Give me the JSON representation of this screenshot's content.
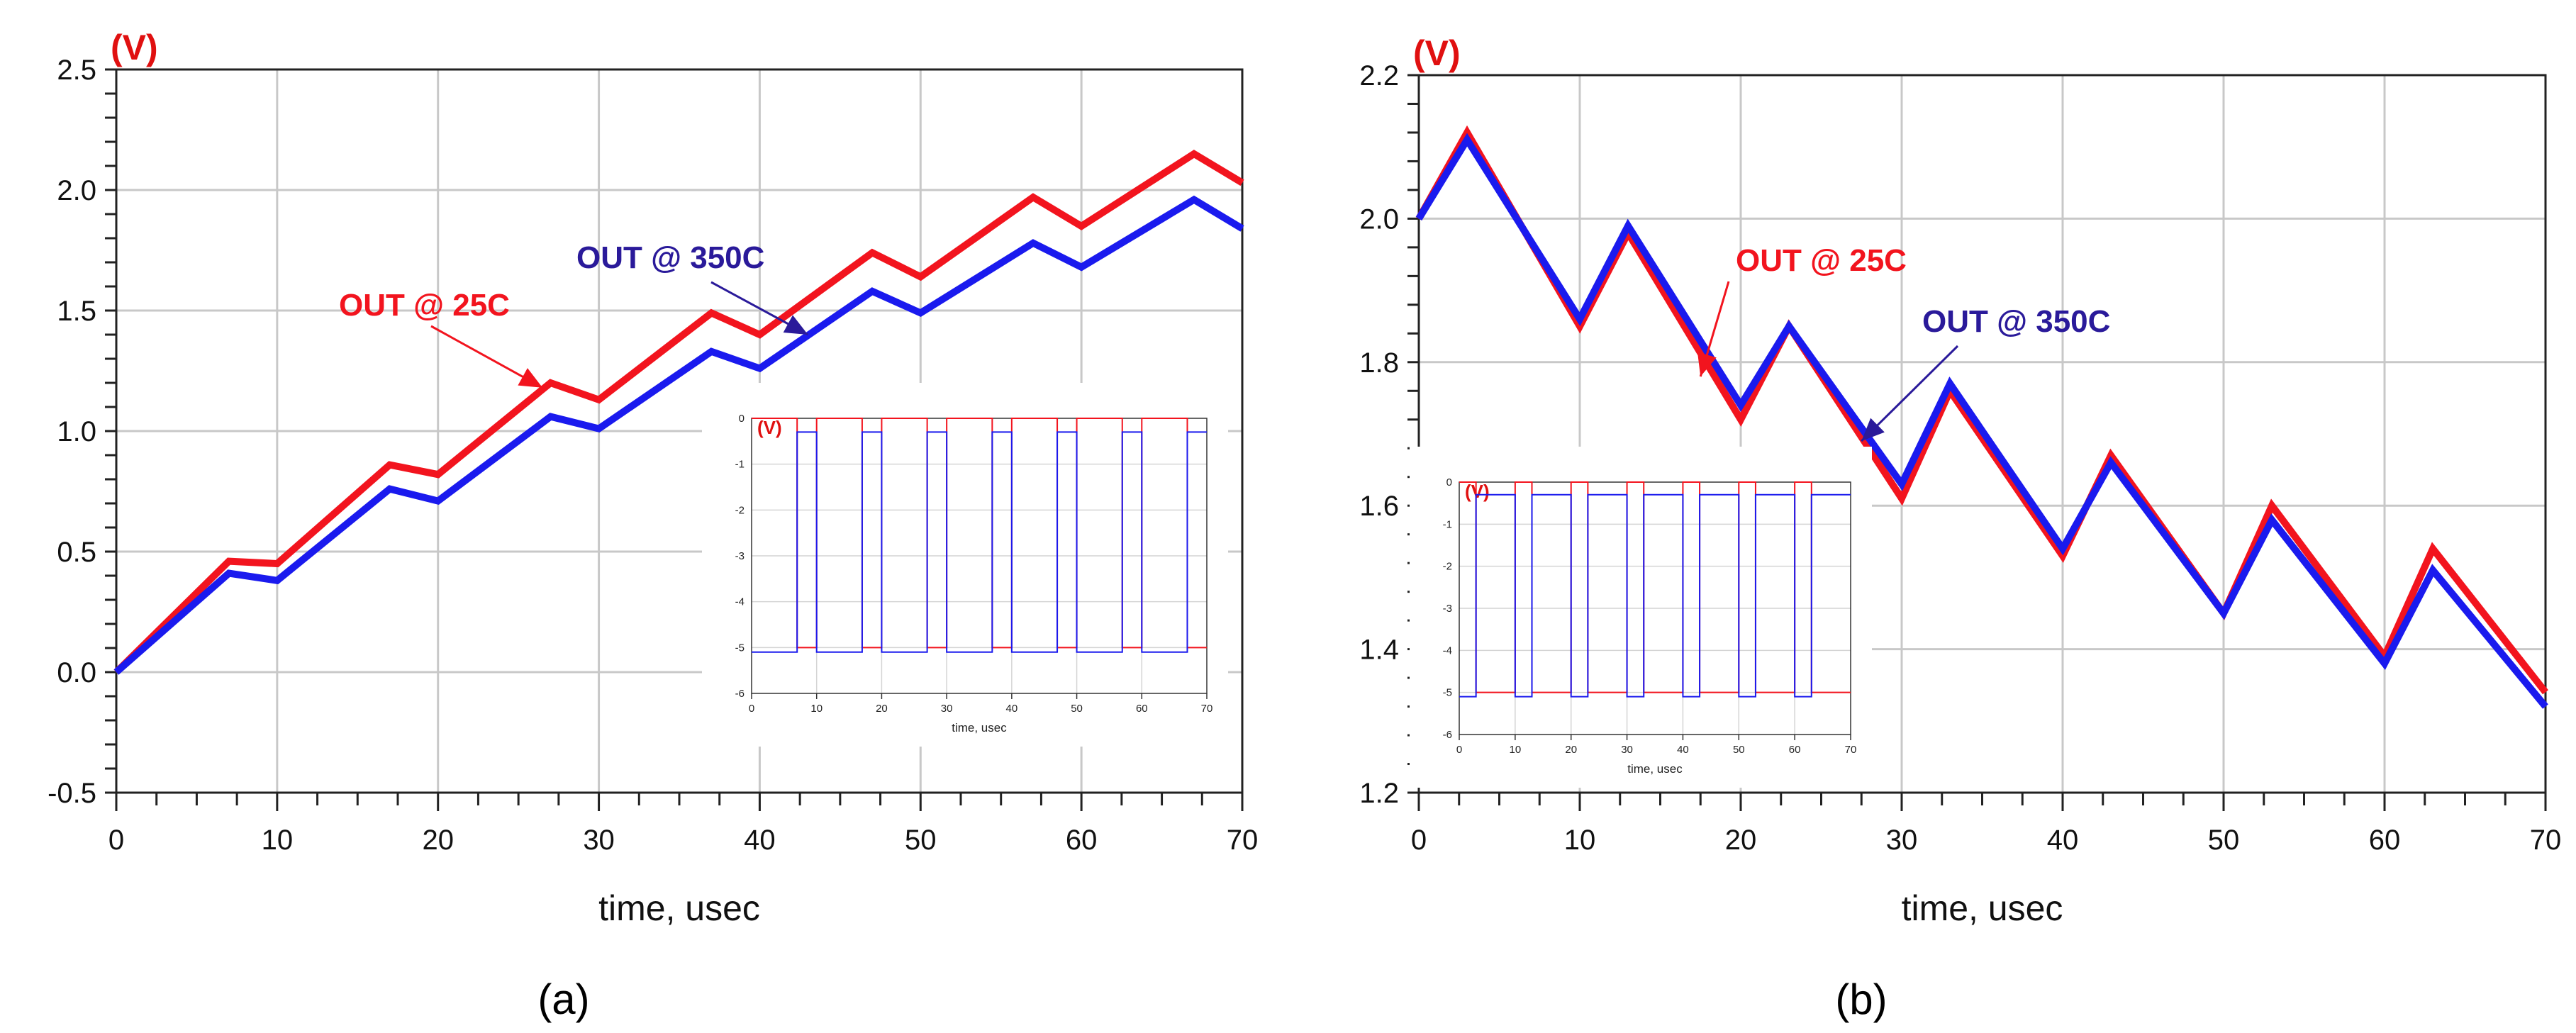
{
  "chart_data": [
    {
      "type": "line",
      "panel_label": "(a)",
      "unit_label": "(V)",
      "xlabel": "time, usec",
      "xlim": [
        0,
        70
      ],
      "ylim": [
        -0.5,
        2.5
      ],
      "xticks": [
        0,
        10,
        20,
        30,
        40,
        50,
        60,
        70
      ],
      "yticks": [
        -0.5,
        0.0,
        0.5,
        1.0,
        1.5,
        2.0,
        2.5
      ],
      "ytick_labels": [
        "-0.5",
        "0.0",
        "0.5",
        "1.0",
        "1.5",
        "2.0",
        "2.5"
      ],
      "grid": true,
      "series": [
        {
          "name": "OUT @ 25C",
          "color": "#f2141e",
          "x": [
            0,
            7,
            10,
            17,
            20,
            27,
            30,
            37,
            40,
            47,
            50,
            57,
            60,
            67,
            70
          ],
          "y": [
            0.0,
            0.46,
            0.45,
            0.86,
            0.82,
            1.2,
            1.13,
            1.49,
            1.4,
            1.74,
            1.64,
            1.97,
            1.85,
            2.15,
            2.03
          ]
        },
        {
          "name": "OUT @ 350C",
          "color": "#1a1aee",
          "x": [
            0,
            7,
            10,
            17,
            20,
            27,
            30,
            37,
            40,
            47,
            50,
            57,
            60,
            67,
            70
          ],
          "y": [
            0.0,
            0.41,
            0.38,
            0.76,
            0.71,
            1.06,
            1.01,
            1.33,
            1.26,
            1.58,
            1.49,
            1.78,
            1.68,
            1.96,
            1.84
          ]
        }
      ],
      "annotations": [
        {
          "text": "OUT @ 25C",
          "color": "#f2141e",
          "target": [
            26.5,
            1.18
          ]
        },
        {
          "text": "OUT @ 350C",
          "color": "#2a1a9a",
          "target": [
            43,
            1.4
          ]
        }
      ],
      "inset": {
        "unit_label": "(V)",
        "xlabel": "time, usec",
        "xlim": [
          0,
          70
        ],
        "ylim": [
          -6,
          0
        ],
        "xticks": [
          0,
          10,
          20,
          30,
          40,
          50,
          60,
          70
        ],
        "yticks": [
          -6,
          -5,
          -4,
          -3,
          -2,
          -1,
          0
        ],
        "ytick_labels": [
          "-6",
          "-5",
          "-4",
          "-3",
          "-2",
          "-1",
          "0"
        ],
        "series": [
          {
            "color": "#f2141e",
            "high": 0,
            "low": -5,
            "high_intervals": [
              [
                0,
                7
              ],
              [
                10,
                17
              ],
              [
                20,
                27
              ],
              [
                30,
                37
              ],
              [
                40,
                47
              ],
              [
                50,
                57
              ],
              [
                60,
                67
              ]
            ]
          },
          {
            "color": "#1a1aee",
            "high": -0.3,
            "low": -5.1,
            "high_intervals": [
              [
                7,
                10
              ],
              [
                17,
                20
              ],
              [
                27,
                30
              ],
              [
                37,
                40
              ],
              [
                47,
                50
              ],
              [
                57,
                60
              ],
              [
                67,
                70
              ]
            ]
          }
        ]
      }
    },
    {
      "type": "line",
      "panel_label": "(b)",
      "unit_label": "(V)",
      "xlabel": "time, usec",
      "xlim": [
        0,
        70
      ],
      "ylim": [
        1.2,
        2.2
      ],
      "xticks": [
        0,
        10,
        20,
        30,
        40,
        50,
        60,
        70
      ],
      "yticks": [
        1.2,
        1.4,
        1.6,
        1.8,
        2.0,
        2.2
      ],
      "ytick_labels": [
        "1.2",
        "1.4",
        "1.6",
        "1.8",
        "2.0",
        "2.2"
      ],
      "grid": true,
      "series": [
        {
          "name": "OUT @ 25C",
          "color": "#f2141e",
          "x": [
            0,
            3,
            10,
            13,
            20,
            23,
            30,
            33,
            40,
            43,
            50,
            53,
            60,
            63,
            70
          ],
          "y": [
            2.0,
            2.12,
            1.85,
            1.98,
            1.72,
            1.85,
            1.61,
            1.76,
            1.53,
            1.67,
            1.45,
            1.6,
            1.39,
            1.54,
            1.34
          ]
        },
        {
          "name": "OUT @ 350C",
          "color": "#1a1aee",
          "x": [
            0,
            3,
            10,
            13,
            20,
            23,
            30,
            33,
            40,
            43,
            50,
            53,
            60,
            63,
            70
          ],
          "y": [
            2.0,
            2.11,
            1.86,
            1.99,
            1.74,
            1.85,
            1.63,
            1.77,
            1.54,
            1.66,
            1.45,
            1.58,
            1.38,
            1.51,
            1.32
          ]
        }
      ],
      "annotations": [
        {
          "text": "OUT @ 25C",
          "color": "#f2141e",
          "target": [
            17.5,
            1.78
          ]
        },
        {
          "text": "OUT @ 350C",
          "color": "#2a1a9a",
          "target": [
            27.5,
            1.69
          ]
        }
      ],
      "inset": {
        "unit_label": "(V)",
        "xlabel": "time, usec",
        "xlim": [
          0,
          70
        ],
        "ylim": [
          -6,
          0
        ],
        "xticks": [
          0,
          10,
          20,
          30,
          40,
          50,
          60,
          70
        ],
        "yticks": [
          -6,
          -5,
          -4,
          -3,
          -2,
          -1,
          0
        ],
        "ytick_labels": [
          "-6",
          "-5",
          "-4",
          "-3",
          "-2",
          "-1",
          "0"
        ],
        "series": [
          {
            "color": "#f2141e",
            "high": 0,
            "low": -5,
            "high_intervals": [
              [
                0,
                3
              ],
              [
                10,
                13
              ],
              [
                20,
                23
              ],
              [
                30,
                33
              ],
              [
                40,
                43
              ],
              [
                50,
                53
              ],
              [
                60,
                63
              ]
            ]
          },
          {
            "color": "#1a1aee",
            "high": -0.3,
            "low": -5.1,
            "high_intervals": [
              [
                3,
                10
              ],
              [
                13,
                20
              ],
              [
                23,
                30
              ],
              [
                33,
                40
              ],
              [
                43,
                50
              ],
              [
                53,
                60
              ],
              [
                63,
                70
              ]
            ]
          }
        ]
      }
    }
  ]
}
